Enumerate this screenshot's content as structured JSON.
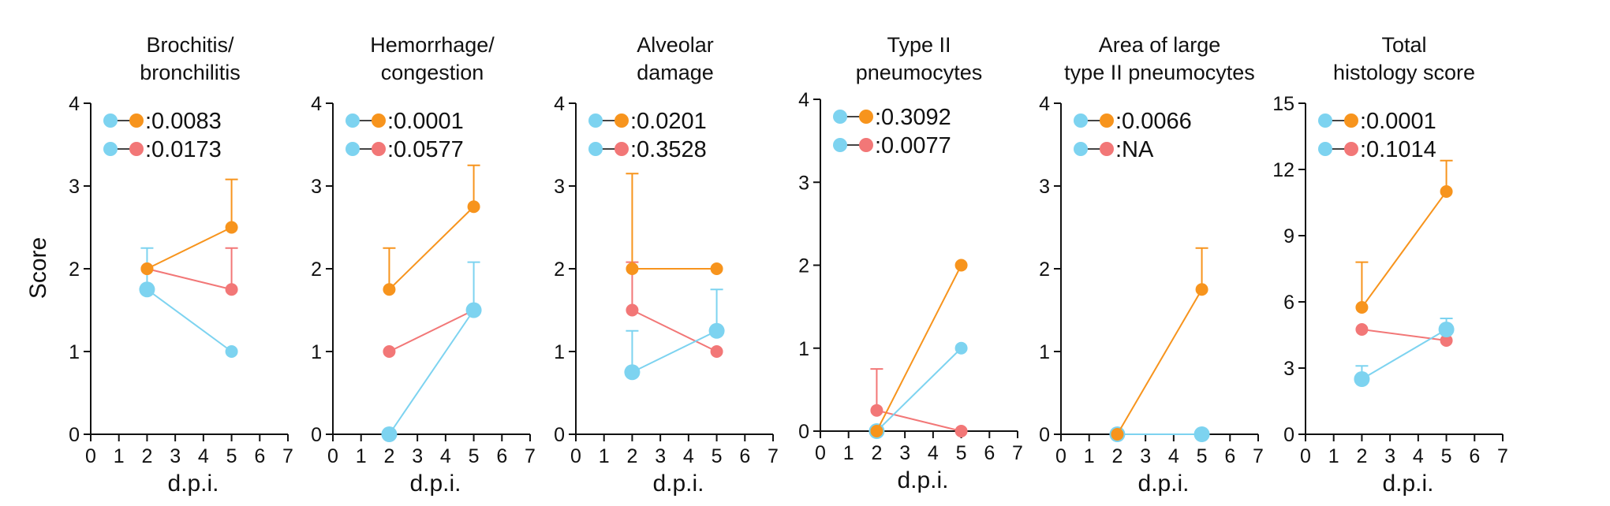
{
  "colors": {
    "blue": "#7dd3f0",
    "orange": "#f7941d",
    "red": "#f27777"
  },
  "shared": {
    "xlabel": "d.p.i.",
    "ylabel": "Score",
    "xticks": [
      0,
      1,
      2,
      3,
      4,
      5,
      6,
      7
    ]
  },
  "chart_data": [
    {
      "type": "line",
      "title_lines": [
        "Brochitis/",
        "bronchilitis"
      ],
      "ylim": [
        0,
        4
      ],
      "yticks": [
        0,
        1,
        2,
        3,
        4
      ],
      "legend": [
        {
          "pair": [
            "blue",
            "orange"
          ],
          "text": ":0.0083"
        },
        {
          "pair": [
            "blue",
            "red"
          ],
          "text": ":0.0173"
        }
      ],
      "series": [
        {
          "name": "red",
          "x": [
            2,
            5
          ],
          "y": [
            2,
            1.75
          ],
          "err": [
            0,
            0.5
          ]
        },
        {
          "name": "blue",
          "x": [
            2,
            5
          ],
          "y": [
            1.75,
            1
          ],
          "err": [
            0.5,
            0
          ]
        },
        {
          "name": "orange",
          "x": [
            2,
            5
          ],
          "y": [
            2,
            2.5
          ],
          "err": [
            0,
            0.58
          ]
        }
      ]
    },
    {
      "type": "line",
      "title_lines": [
        "Hemorrhage/",
        "congestion"
      ],
      "ylim": [
        0,
        4
      ],
      "yticks": [
        0,
        1,
        2,
        3,
        4
      ],
      "legend": [
        {
          "pair": [
            "blue",
            "orange"
          ],
          "text": ":0.0001"
        },
        {
          "pair": [
            "blue",
            "red"
          ],
          "text": ":0.0577"
        }
      ],
      "series": [
        {
          "name": "red",
          "x": [
            2,
            5
          ],
          "y": [
            1,
            1.5
          ],
          "err": [
            0,
            0
          ]
        },
        {
          "name": "blue",
          "x": [
            2,
            5
          ],
          "y": [
            0,
            1.5
          ],
          "err": [
            0,
            0.58
          ]
        },
        {
          "name": "orange",
          "x": [
            2,
            5
          ],
          "y": [
            1.75,
            2.75
          ],
          "err": [
            0.5,
            0.5
          ]
        }
      ]
    },
    {
      "type": "line",
      "title_lines": [
        "Alveolar",
        "damage"
      ],
      "ylim": [
        0,
        4
      ],
      "yticks": [
        0,
        1,
        2,
        3,
        4
      ],
      "legend": [
        {
          "pair": [
            "blue",
            "orange"
          ],
          "text": ":0.0201"
        },
        {
          "pair": [
            "blue",
            "red"
          ],
          "text": ":0.3528"
        }
      ],
      "series": [
        {
          "name": "red",
          "x": [
            2,
            5
          ],
          "y": [
            1.5,
            1
          ],
          "err": [
            0.58,
            0
          ]
        },
        {
          "name": "blue",
          "x": [
            2,
            5
          ],
          "y": [
            0.75,
            1.25
          ],
          "err": [
            0.5,
            0.5
          ]
        },
        {
          "name": "orange",
          "x": [
            2,
            5
          ],
          "y": [
            2,
            2
          ],
          "err": [
            1.15,
            0
          ]
        }
      ]
    },
    {
      "type": "line",
      "title_lines": [
        "Type II",
        "pneumocytes"
      ],
      "ylim": [
        0,
        4
      ],
      "yticks": [
        0,
        1,
        2,
        3,
        4
      ],
      "legend": [
        {
          "pair": [
            "blue",
            "orange"
          ],
          "text": ":0.3092"
        },
        {
          "pair": [
            "blue",
            "red"
          ],
          "text": ":0.0077"
        }
      ],
      "series": [
        {
          "name": "red",
          "x": [
            2,
            5
          ],
          "y": [
            0.25,
            0
          ],
          "err": [
            0.5,
            0
          ]
        },
        {
          "name": "blue",
          "x": [
            2,
            5
          ],
          "y": [
            0,
            1
          ],
          "err": [
            0,
            0
          ]
        },
        {
          "name": "orange",
          "x": [
            2,
            5
          ],
          "y": [
            0,
            2
          ],
          "err": [
            0,
            0
          ]
        }
      ]
    },
    {
      "type": "line",
      "title_lines": [
        "Area of large",
        "type II pneumocytes"
      ],
      "ylim": [
        0,
        4
      ],
      "yticks": [
        0,
        1,
        2,
        3,
        4
      ],
      "legend": [
        {
          "pair": [
            "blue",
            "orange"
          ],
          "text": ":0.0066"
        },
        {
          "pair": [
            "blue",
            "red"
          ],
          "text": ":NA"
        }
      ],
      "series": [
        {
          "name": "blue",
          "x": [
            2,
            5
          ],
          "y": [
            0,
            0
          ],
          "err": [
            0,
            0
          ]
        },
        {
          "name": "orange",
          "x": [
            2,
            5
          ],
          "y": [
            0,
            1.75
          ],
          "err": [
            0,
            0.5
          ]
        }
      ]
    },
    {
      "type": "line",
      "title_lines": [
        "Total",
        "histology score"
      ],
      "ylim": [
        0,
        15
      ],
      "yticks": [
        0,
        3,
        6,
        9,
        12,
        15
      ],
      "legend": [
        {
          "pair": [
            "blue",
            "orange"
          ],
          "text": ":0.0001"
        },
        {
          "pair": [
            "blue",
            "red"
          ],
          "text": ":0.1014"
        }
      ],
      "series": [
        {
          "name": "red",
          "x": [
            2,
            5
          ],
          "y": [
            4.75,
            4.25
          ],
          "err": [
            0,
            0
          ]
        },
        {
          "name": "blue",
          "x": [
            2,
            5
          ],
          "y": [
            2.5,
            4.75
          ],
          "err": [
            0.6,
            0.5
          ]
        },
        {
          "name": "orange",
          "x": [
            2,
            5
          ],
          "y": [
            5.75,
            11
          ],
          "err": [
            2.05,
            1.4
          ]
        }
      ]
    }
  ]
}
